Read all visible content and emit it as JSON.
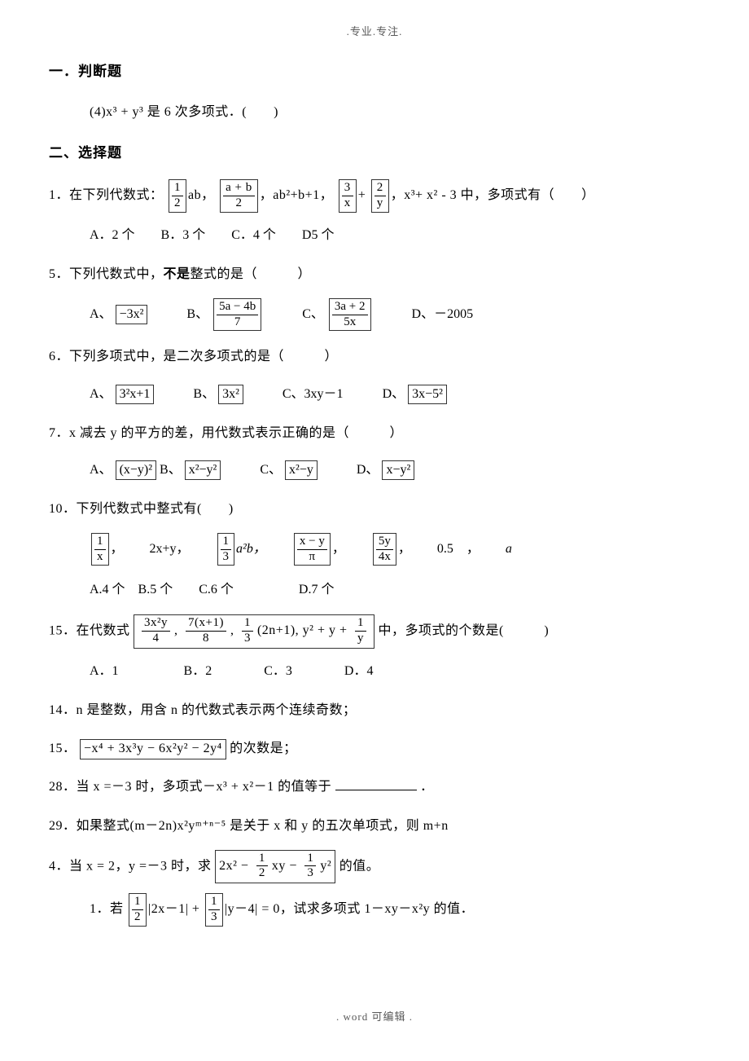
{
  "header": ".专业.专注.",
  "footer": ".  word 可编辑  .",
  "sec1_title": "一．判断题",
  "q_s1_4": "(4)x³ + y³ 是 6 次多项式．(　　)",
  "sec2_title": "二、选择题",
  "q1_lead": "1．在下列代数式：",
  "q1_item1_post": "ab，",
  "q1_item3": "，ab²+b+1，",
  "q1_item4_plus": "+",
  "q1_tail": "，x³+ x² - 3 中，多项式有（　　）",
  "q1_opts": "A．2 个　　B．3 个　　C．4 个　　D5 个",
  "q5": "5．下列代数式中，不是整式的是（　　　）",
  "q5_not": "不是",
  "q5_pre": "5．下列代数式中，",
  "q5_post": "整式的是（　　　）",
  "q5_A": "A、",
  "q5_B": "B、",
  "q5_C": "C、",
  "q5_D": "D、－2005",
  "q6": "6．下列多项式中，是二次多项式的是（　　　）",
  "q6_A": "A、",
  "q6_B": "B、",
  "q6_C": "C、3xy－1",
  "q6_D": "D、",
  "q7": "7．x 减去 y 的平方的差，用代数式表示正确的是（　　　）",
  "q7_A": "A、",
  "q7_B": "B、",
  "q7_C": "C、",
  "q7_D": "D、",
  "q10": "10．下列代数式中整式有(　　)",
  "q10_sep": "，",
  "q10_item2": "2x+y，",
  "q10_item3_post": "a²b，",
  "q10_item6_a": "0.5　，",
  "q10_item6_b": "a",
  "q10_opts": "A.4 个　B.5 个　　C.6 个　　　　　D.7 个",
  "q15_lead": "15．在代数式",
  "q15_tail": "中，多项式的个数是(　　　)",
  "q15_opts": "A．1　　　　　B．2　　　　C．3　　　　D．4",
  "q14": "14．n 是整数，用含 n 的代数式表示两个连续奇数；",
  "q15b_lead": "15．",
  "q15b_tail": "的次数是；",
  "q28_pre": "28．当 x =－3 时，多项式－x³ + x²－1 的值等于",
  "q28_post": "．",
  "q29": "29．如果整式(m－2n)x²yᵐ⁺ⁿ⁻⁵ 是关于 x 和 y 的五次单项式，则 m+n",
  "q4_lead": "4．当 x = 2，y =－3 时，求",
  "q4_tail": "的值。",
  "q_last_lead": "1．若",
  "q_last_mid1": "|2x－1| +",
  "q_last_mid2": "|y－4| = 0，试求多项式 1－xy－x²y 的值．",
  "frac": {
    "half_num": "1",
    "half_den": "2",
    "ab2_num": "a + b",
    "ab2_den": "2",
    "three_x_num": "3",
    "three_x_den": "x",
    "two_y_num": "2",
    "two_y_den": "y",
    "neg3x2": "−3x²",
    "f5a4b7_num": "5a − 4b",
    "f5a4b7_den": "7",
    "f3a2_5x_num": "3a + 2",
    "f3a2_5x_den": "5x",
    "b32x1": "3²x+1",
    "b3x2": "3x²",
    "b3xm52": "3x−5²",
    "bxy2": "(x−y)²",
    "bx2y2": "x²−y²",
    "bx2y": "x²−y",
    "bxy_2": "x−y²",
    "f1x_num": "1",
    "f1x_den": "x",
    "f13_num": "1",
    "f13_den": "3",
    "fxy_pi_num": "x − y",
    "fxy_pi_den": "π",
    "f5y4x_num": "5y",
    "f5y4x_den": "4x",
    "q15_box_a_num": "3x²y",
    "q15_box_a_den": "4",
    "q15_box_b_num": "7(x+1)",
    "q15_box_b_den": "8",
    "q15_box_c_num": "1",
    "q15_box_c_den": "3",
    "q15_box_c_post": "(2n+1), y² + y +",
    "q15_box_d_num": "1",
    "q15_box_d_den": "y",
    "q15b_box": "−x⁴ + 3x³y − 6x²y² − 2y⁴",
    "q4_box_pre": "2x² −",
    "q4_box_f1_num": "1",
    "q4_box_f1_den": "2",
    "q4_box_mid": "xy −",
    "q4_box_f2_num": "1",
    "q4_box_f2_den": "3",
    "q4_box_post": "y²"
  }
}
